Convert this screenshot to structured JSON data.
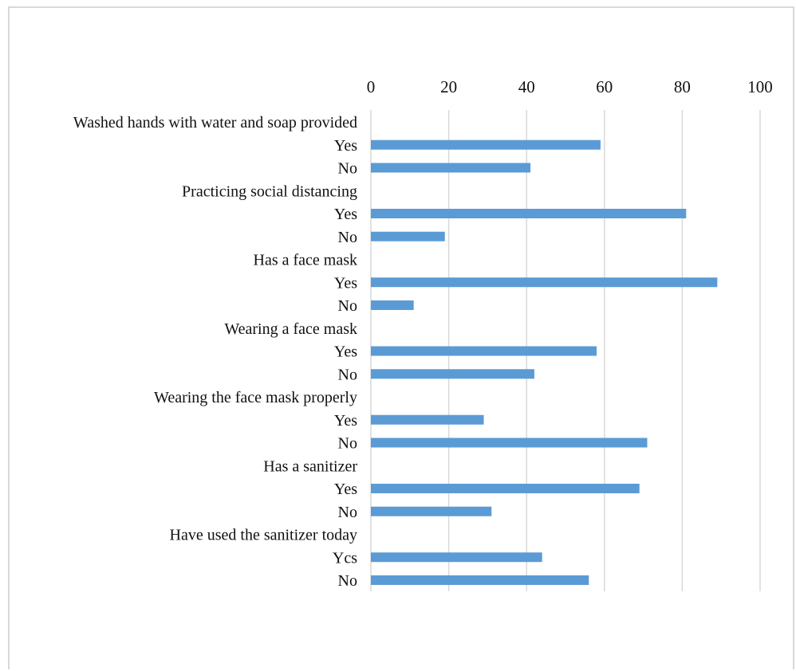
{
  "chart_data": {
    "type": "bar",
    "orientation": "horizontal",
    "xaxis_position": "top",
    "xlim": [
      0,
      100
    ],
    "xticks": [
      0,
      20,
      40,
      60,
      80,
      100
    ],
    "grid": true,
    "bar_color": "#5b9bd5",
    "rows": [
      {
        "label": "Washed hands with water and soap provided",
        "value": null
      },
      {
        "label": "Yes",
        "value": 59
      },
      {
        "label": "No",
        "value": 41
      },
      {
        "label": "Practicing social distancing",
        "value": null
      },
      {
        "label": "Yes",
        "value": 81
      },
      {
        "label": "No",
        "value": 19
      },
      {
        "label": "Has a face mask",
        "value": null
      },
      {
        "label": "Yes",
        "value": 89
      },
      {
        "label": "No",
        "value": 11
      },
      {
        "label": "Wearing a face mask",
        "value": null
      },
      {
        "label": "Yes",
        "value": 58
      },
      {
        "label": "No",
        "value": 42
      },
      {
        "label": "Wearing the face mask properly",
        "value": null
      },
      {
        "label": "Yes",
        "value": 29
      },
      {
        "label": "No",
        "value": 71
      },
      {
        "label": "Has a sanitizer",
        "value": null
      },
      {
        "label": "Yes",
        "value": 69
      },
      {
        "label": "No",
        "value": 31
      },
      {
        "label": "Have used the sanitizer today",
        "value": null
      },
      {
        "label": "Ycs",
        "value": 44
      },
      {
        "label": "No",
        "value": 56
      }
    ]
  }
}
